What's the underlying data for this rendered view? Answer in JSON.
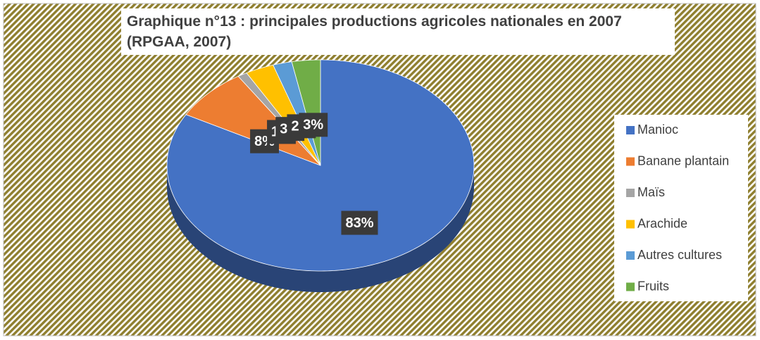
{
  "chart_data": {
    "type": "pie",
    "title": "Graphique n°13 : principales productions agricoles nationales en 2007 (RPGAA, 2007)",
    "categories": [
      "Manioc",
      "Banane plantain",
      "Maïs",
      "Arachide",
      "Autres cultures",
      "Fruits"
    ],
    "values": [
      83,
      8,
      1,
      3,
      2,
      3
    ],
    "value_labels": [
      "83%",
      "8%",
      "1%",
      "3%",
      "2%",
      "3%"
    ],
    "colors": [
      "#4472c4",
      "#ed7d31",
      "#a5a5a5",
      "#ffc000",
      "#5b9bd5",
      "#70ad47"
    ],
    "legend": "right"
  }
}
